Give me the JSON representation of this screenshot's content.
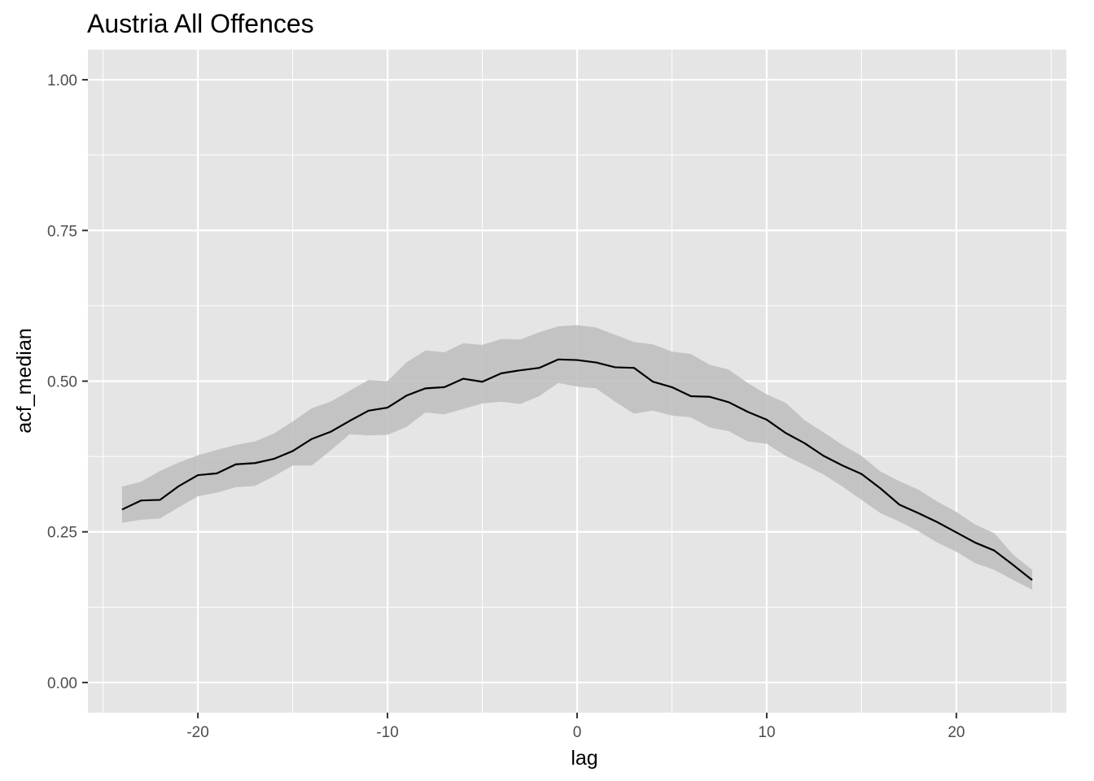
{
  "chart_data": {
    "type": "area",
    "title": "Austria All Offences",
    "xlabel": "lag",
    "ylabel": "acf_median",
    "xlim": [
      -25.8,
      25.8
    ],
    "ylim": [
      -0.05,
      1.05
    ],
    "x_ticks": [
      -20,
      -10,
      0,
      10,
      20
    ],
    "x_tick_labels": [
      "-20",
      "-10",
      "0",
      "10",
      "20"
    ],
    "y_ticks": [
      0.0,
      0.25,
      0.5,
      0.75,
      1.0
    ],
    "y_tick_labels": [
      "0.00",
      "0.25",
      "0.50",
      "0.75",
      "1.00"
    ],
    "grid": true,
    "background": "#e5e5e5",
    "grid_color": "#ffffff",
    "line_color": "#000000",
    "band_color": "#bdbdbd",
    "x": [
      -24,
      -23,
      -22,
      -21,
      -20,
      -19,
      -18,
      -17,
      -16,
      -15,
      -14,
      -13,
      -12,
      -11,
      -10,
      -9,
      -8,
      -7,
      -6,
      -5,
      -4,
      -3,
      -2,
      -1,
      0,
      1,
      2,
      3,
      4,
      5,
      6,
      7,
      8,
      9,
      10,
      11,
      12,
      13,
      14,
      15,
      16,
      17,
      18,
      19,
      20,
      21,
      22,
      23,
      24
    ],
    "series": [
      {
        "type": "line",
        "values": [
          0.287,
          0.302,
          0.303,
          0.326,
          0.344,
          0.347,
          0.362,
          0.364,
          0.371,
          0.384,
          0.404,
          0.416,
          0.434,
          0.451,
          0.456,
          0.476,
          0.488,
          0.49,
          0.504,
          0.499,
          0.513,
          0.518,
          0.522,
          0.536,
          0.535,
          0.531,
          0.523,
          0.522,
          0.499,
          0.49,
          0.475,
          0.474,
          0.465,
          0.449,
          0.436,
          0.414,
          0.397,
          0.376,
          0.36,
          0.346,
          0.322,
          0.295,
          0.281,
          0.266,
          0.249,
          0.232,
          0.219,
          0.195,
          0.17
        ]
      },
      {
        "type": "ribbon",
        "lower": [
          0.265,
          0.27,
          0.272,
          0.291,
          0.309,
          0.315,
          0.324,
          0.326,
          0.342,
          0.36,
          0.36,
          0.385,
          0.412,
          0.41,
          0.411,
          0.424,
          0.448,
          0.445,
          0.454,
          0.463,
          0.466,
          0.462,
          0.475,
          0.497,
          0.491,
          0.488,
          0.466,
          0.446,
          0.451,
          0.443,
          0.44,
          0.423,
          0.417,
          0.4,
          0.396,
          0.376,
          0.361,
          0.345,
          0.325,
          0.303,
          0.281,
          0.267,
          0.251,
          0.232,
          0.217,
          0.198,
          0.187,
          0.17,
          0.154
        ],
        "upper": [
          0.325,
          0.333,
          0.351,
          0.365,
          0.377,
          0.386,
          0.394,
          0.4,
          0.413,
          0.433,
          0.455,
          0.466,
          0.484,
          0.502,
          0.5,
          0.531,
          0.551,
          0.548,
          0.563,
          0.56,
          0.57,
          0.569,
          0.581,
          0.591,
          0.593,
          0.589,
          0.577,
          0.565,
          0.561,
          0.549,
          0.545,
          0.527,
          0.519,
          0.497,
          0.478,
          0.464,
          0.435,
          0.415,
          0.394,
          0.376,
          0.35,
          0.334,
          0.32,
          0.3,
          0.283,
          0.262,
          0.248,
          0.212,
          0.187
        ]
      }
    ]
  }
}
